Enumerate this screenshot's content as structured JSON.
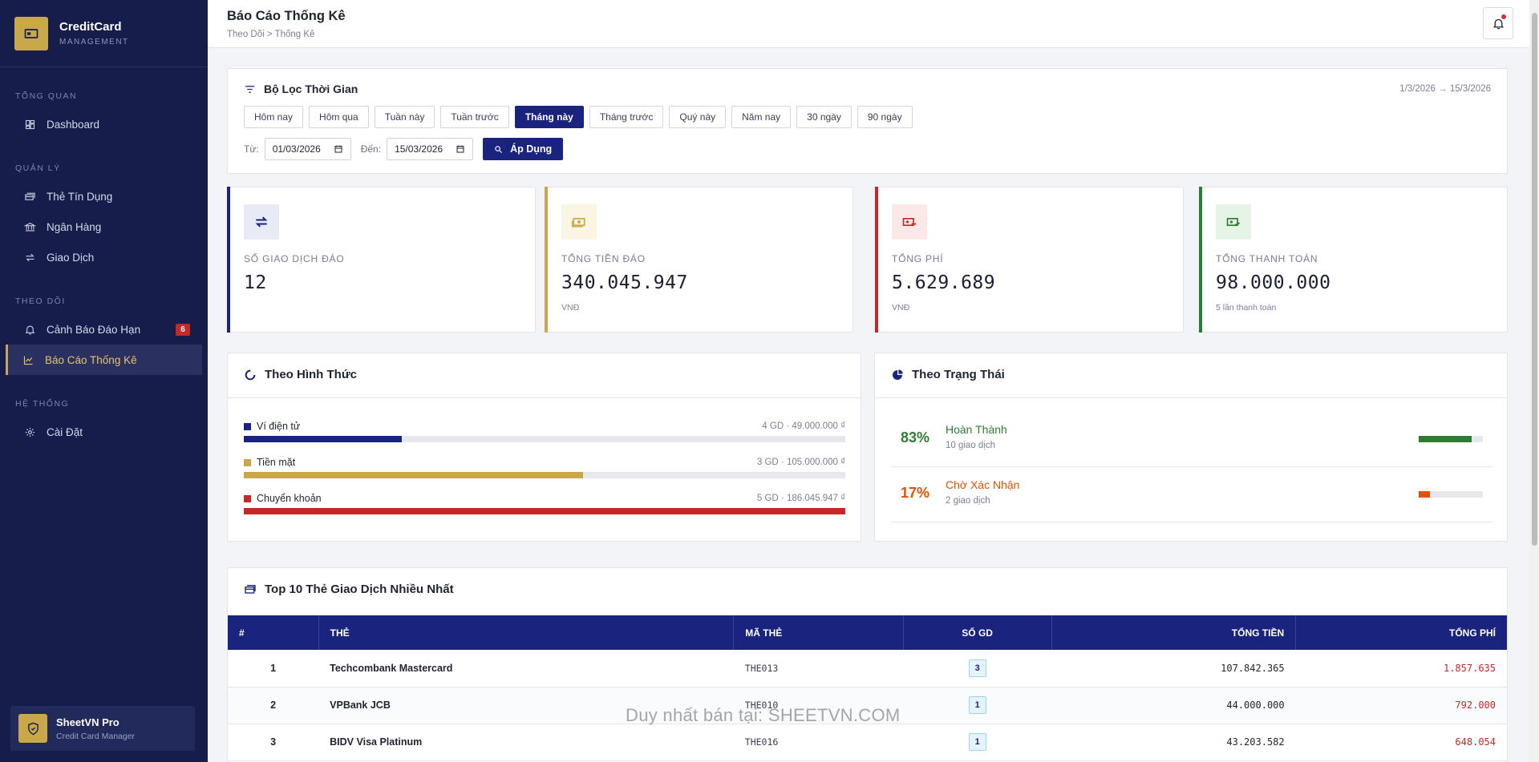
{
  "brand": {
    "title": "CreditCard",
    "subtitle": "MANAGEMENT"
  },
  "nav": {
    "sections": [
      {
        "label": "TỔNG QUAN",
        "items": [
          {
            "label": "Dashboard",
            "icon": "dashboard-icon"
          }
        ]
      },
      {
        "label": "QUẢN LÝ",
        "items": [
          {
            "label": "Thẻ Tín Dụng",
            "icon": "cards-icon"
          },
          {
            "label": "Ngân Hàng",
            "icon": "bank-icon"
          },
          {
            "label": "Giao Dịch",
            "icon": "transfer-icon"
          }
        ]
      },
      {
        "label": "THEO DÕI",
        "items": [
          {
            "label": "Cảnh Báo Đáo Hạn",
            "icon": "bell-icon",
            "badge": "6"
          },
          {
            "label": "Báo Cáo Thống Kê",
            "icon": "chart-icon",
            "active": true
          }
        ]
      },
      {
        "label": "HỆ THỐNG",
        "items": [
          {
            "label": "Cài Đặt",
            "icon": "gear-icon"
          }
        ]
      }
    ]
  },
  "footer": {
    "title": "SheetVN Pro",
    "subtitle": "Credit Card Manager"
  },
  "header": {
    "title": "Báo Cáo Thống Kê",
    "breadcrumb": "Theo Dõi > Thống Kê"
  },
  "filter": {
    "title": "Bộ Lọc Thời Gian",
    "range_text": "1/3/2026 → 15/3/2026",
    "presets": [
      "Hôm nay",
      "Hôm qua",
      "Tuần này",
      "Tuần trước",
      "Tháng này",
      "Tháng trước",
      "Quý này",
      "Năm nay",
      "30 ngày",
      "90 ngày"
    ],
    "active_preset": "Tháng này",
    "from_label": "Từ:",
    "from_value": "01/03/2026",
    "to_label": "Đến:",
    "to_value": "15/03/2026",
    "apply_label": "Áp Dụng"
  },
  "stats": [
    {
      "label": "SỐ GIAO DỊCH ĐÁO",
      "value": "12",
      "note": "",
      "color": "#1a237e",
      "icon_bg": "#e8eaf6",
      "icon": "swap-icon"
    },
    {
      "label": "TỔNG TIỀN ĐÁO",
      "value": "340.045.947",
      "note": "VNĐ",
      "color": "#c9a84a",
      "icon_bg": "#fbf5e4",
      "icon": "money-icon"
    },
    {
      "label": "TỔNG PHÍ",
      "value": "5.629.689",
      "note": "VNĐ",
      "color": "#c62828",
      "icon_bg": "#fde8e8",
      "icon": "money-minus-icon"
    },
    {
      "label": "TỔNG THANH TOÁN",
      "value": "98.000.000",
      "note": "5 lần thanh toán",
      "color": "#2e7d32",
      "icon_bg": "#e6f4e7",
      "icon": "money-check-icon"
    }
  ],
  "methods": {
    "title": "Theo Hình Thức",
    "items": [
      {
        "name": "Ví điện tử",
        "amount": "4 GD · 49.000.000 ₫",
        "fraction": 0.263,
        "color": "#1a237e"
      },
      {
        "name": "Tiền mặt",
        "amount": "3 GD · 105.000.000 ₫",
        "fraction": 0.564,
        "color": "#c9a84a"
      },
      {
        "name": "Chuyển khoản",
        "amount": "5 GD · 186.045.947 ₫",
        "fraction": 1.0,
        "color": "#c62828"
      }
    ]
  },
  "statuses": {
    "title": "Theo Trạng Thái",
    "items": [
      {
        "pct": "83%",
        "name": "Hoàn Thành",
        "sub": "10 giao dịch",
        "fraction": 0.83,
        "color": "#2e7d32"
      },
      {
        "pct": "17%",
        "name": "Chờ Xác Nhận",
        "sub": "2 giao dịch",
        "fraction": 0.17,
        "color": "#e65100"
      }
    ]
  },
  "top_cards": {
    "title": "Top 10 Thẻ Giao Dịch Nhiều Nhất",
    "columns": [
      "#",
      "THẺ",
      "MÃ THẺ",
      "SỐ GD",
      "TỔNG TIỀN",
      "TỔNG PHÍ"
    ],
    "rows": [
      {
        "rank": "1",
        "card": "Techcombank Mastercard",
        "code": "THE013",
        "count": "3",
        "total": "107.842.365",
        "fee": "1.857.635"
      },
      {
        "rank": "2",
        "card": "VPBank JCB",
        "code": "THE010",
        "count": "1",
        "total": "44.000.000",
        "fee": "792.000"
      },
      {
        "rank": "3",
        "card": "BIDV Visa Platinum",
        "code": "THE016",
        "count": "1",
        "total": "43.203.582",
        "fee": "648.054"
      }
    ]
  },
  "watermark": "Duy nhất bán tại: SHEETVN.COM"
}
